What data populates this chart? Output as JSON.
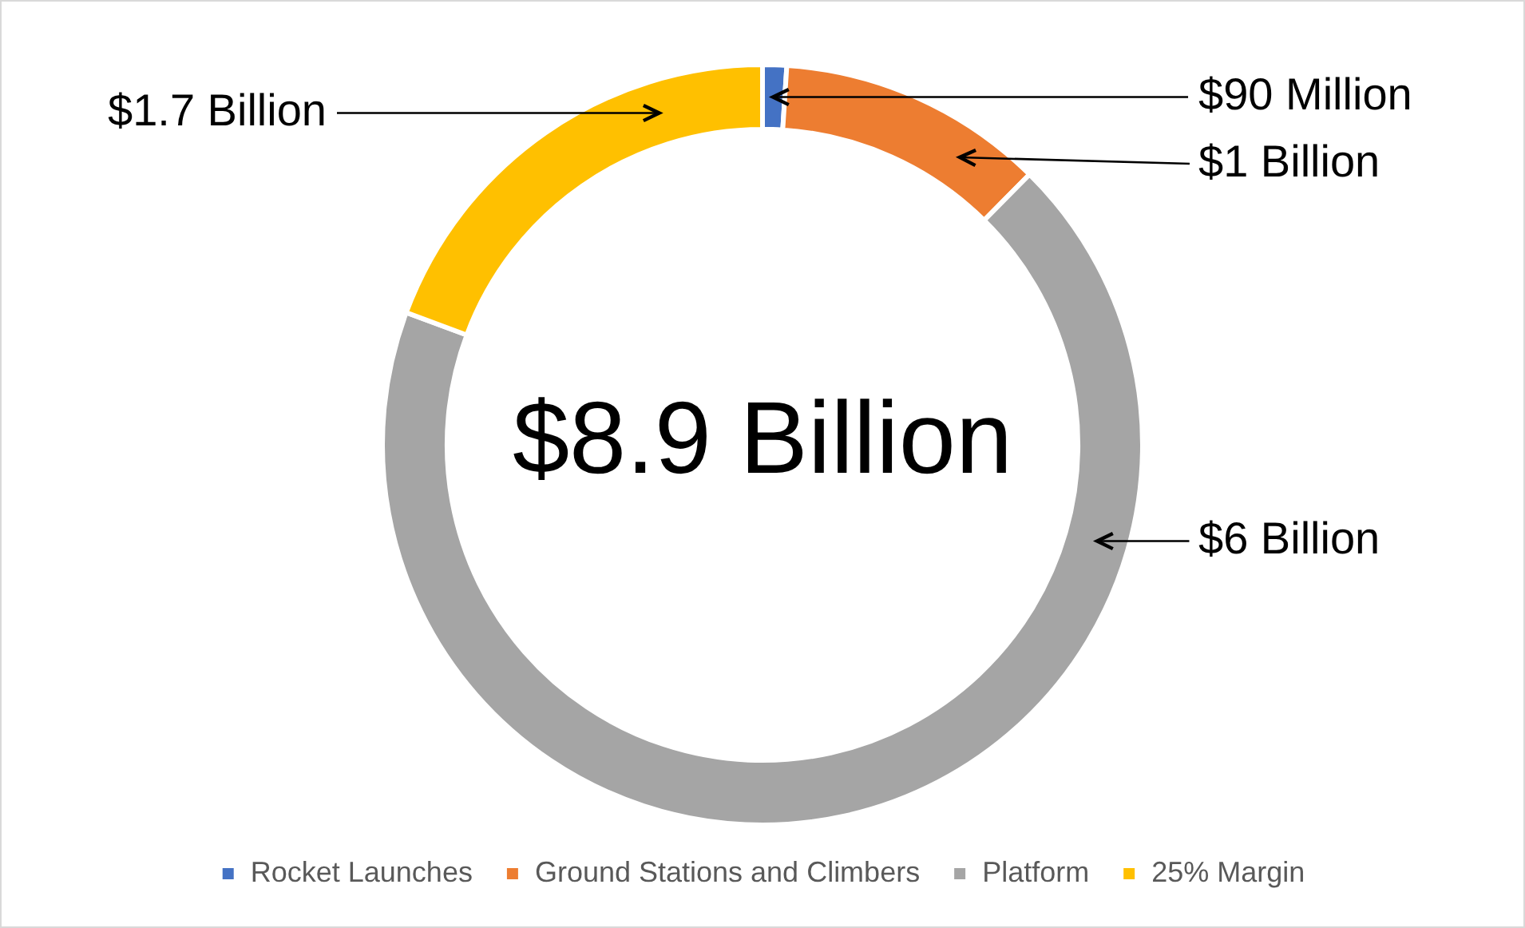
{
  "chart_data": {
    "type": "donut",
    "categories": [
      "Rocket Launches",
      "Ground Stations and Climbers",
      "Platform",
      "25% Margin"
    ],
    "values": [
      1.02,
      11.38,
      68.26,
      19.34
    ],
    "colors": [
      "#4472c4",
      "#ed7d31",
      "#a5a5a5",
      "#ffc000"
    ],
    "annotations": [
      {
        "text": "$90 Million",
        "x": "Rocket Launches"
      },
      {
        "text": "$1 Billion",
        "x": "Ground Stations and Climbers"
      },
      {
        "text": "$6 Billion",
        "x": "Platform"
      },
      {
        "text": "$1.7 Billion",
        "x": "25% Margin"
      },
      "$8.9 Billion"
    ],
    "legend": "bottom"
  }
}
